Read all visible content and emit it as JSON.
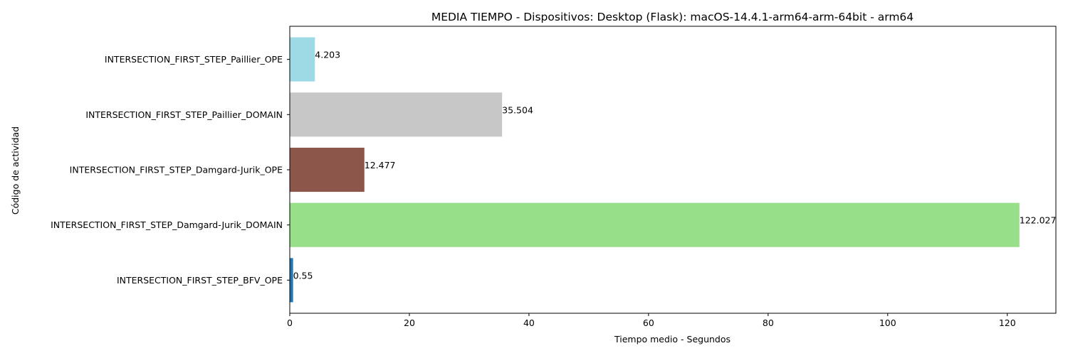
{
  "chart_data": {
    "type": "bar",
    "orientation": "horizontal",
    "title": "MEDIA TIEMPO - Dispositivos: Desktop (Flask): macOS-14.4.1-arm64-arm-64bit - arm64",
    "xlabel": "Tiempo medio - Segundos",
    "ylabel": "Código de actividad",
    "categories": [
      "INTERSECTION_FIRST_STEP_BFV_OPE",
      "INTERSECTION_FIRST_STEP_Damgard-Jurik_DOMAIN",
      "INTERSECTION_FIRST_STEP_Damgard-Jurik_OPE",
      "INTERSECTION_FIRST_STEP_Paillier_DOMAIN",
      "INTERSECTION_FIRST_STEP_Paillier_OPE"
    ],
    "values": [
      0.55,
      122.027,
      12.477,
      35.504,
      4.203
    ],
    "data_labels": [
      "0.55",
      "122.027",
      "12.477",
      "35.504",
      "4.203"
    ],
    "colors": [
      "#1f77b4",
      "#98df8a",
      "#8c564b",
      "#c7c7c7",
      "#9edae5"
    ],
    "xlim": [
      0,
      128.128
    ],
    "xticks": [
      0,
      20,
      40,
      60,
      80,
      100,
      120
    ],
    "grid": false,
    "legend": "none"
  }
}
